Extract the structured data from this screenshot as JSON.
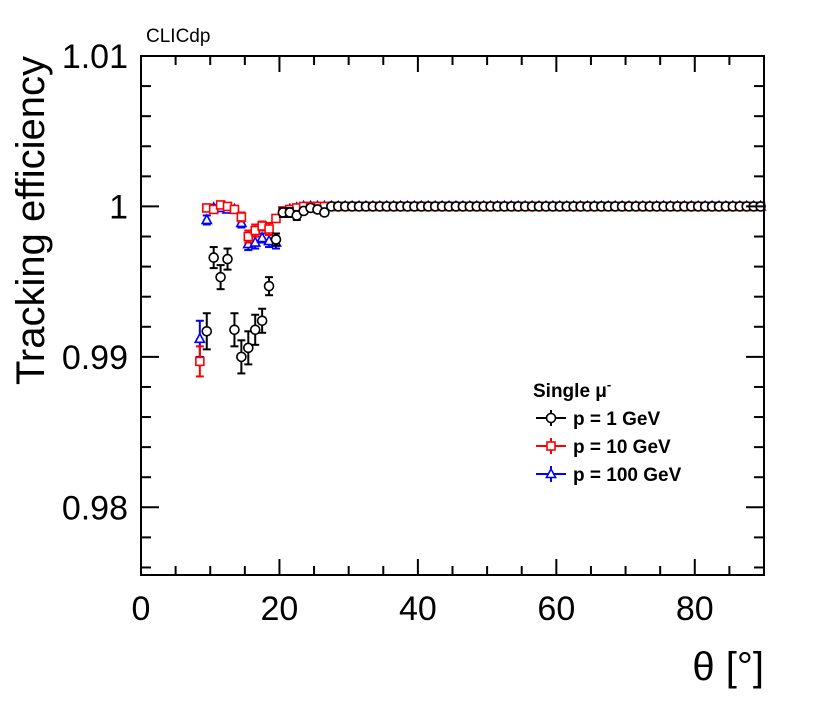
{
  "chart_data": {
    "type": "scatter",
    "label": "CLICdp",
    "xlabel": "θ [°]",
    "ylabel": "Tracking efficiency",
    "xlim": [
      0,
      90
    ],
    "ylim": [
      0.9755,
      1.01
    ],
    "x_ticks": [
      0,
      20,
      40,
      60,
      80
    ],
    "x_tick_labels": [
      "0",
      "20",
      "40",
      "60",
      "80"
    ],
    "y_ticks": [
      0.98,
      0.99,
      1.0,
      1.01
    ],
    "y_tick_labels": [
      "0.98",
      "0.99",
      "1",
      "1.01"
    ],
    "legend": {
      "title": "Single μ",
      "title_sup": "-",
      "position": "right"
    },
    "series": [
      {
        "name": "p = 1 GeV",
        "color": "#000000",
        "marker": "circle",
        "x": [
          9.5,
          10.5,
          11.5,
          12.5,
          13.5,
          14.5,
          15.5,
          16.5,
          17.5,
          18.5,
          19.5,
          20.5,
          21.5,
          22.5,
          23.5,
          24.5,
          25.5,
          26.5
        ],
        "y": [
          0.9917,
          0.9966,
          0.9953,
          0.9965,
          0.9918,
          0.99,
          0.9906,
          0.9918,
          0.9924,
          0.9947,
          0.9978,
          0.9996,
          0.9996,
          0.9994,
          0.9997,
          0.9999,
          0.9998,
          0.9996
        ],
        "err": [
          0.0012,
          0.0007,
          0.0008,
          0.0007,
          0.0011,
          0.0011,
          0.0011,
          0.001,
          0.0008,
          0.0006,
          0.0004,
          0.0003,
          0.0003,
          0.0003,
          0.0002,
          0.0002,
          0.0002,
          0.0002
        ],
        "plateau": {
          "from": 27.5,
          "to": 89.5,
          "step": 1,
          "y": 1.0
        }
      },
      {
        "name": "p = 10 GeV",
        "color": "#ff0000",
        "marker": "square",
        "x": [
          8.5,
          9.5,
          10.5,
          11.5,
          12.5,
          13.5,
          14.5,
          15.5,
          16.5,
          17.5,
          18.5,
          19.5,
          20.5,
          21.5,
          22.5,
          23.5,
          24.5
        ],
        "y": [
          0.9897,
          0.9999,
          0.9998,
          1.0001,
          1.0,
          0.9998,
          0.9993,
          0.998,
          0.9984,
          0.9987,
          0.9985,
          0.9992,
          0.9997,
          0.9998,
          0.9999,
          1.0,
          1.0
        ],
        "err": [
          0.001,
          0.0002,
          0.0002,
          0.0002,
          0.0002,
          0.0002,
          0.0003,
          0.0004,
          0.0004,
          0.0003,
          0.0004,
          0.0002,
          0.0002,
          0.0001,
          0.0001,
          0.0001,
          0.0001
        ],
        "plateau": {
          "from": 25.5,
          "to": 89.5,
          "step": 1,
          "y": 1.0
        }
      },
      {
        "name": "p = 100 GeV",
        "color": "#0000ff",
        "marker": "triangle",
        "x": [
          8.5,
          9.5,
          10.5,
          11.5,
          12.5,
          13.5,
          14.5,
          15.5,
          16.5,
          17.5,
          18.5,
          19.5,
          20.5,
          21.5,
          22.5,
          23.5,
          24.5
        ],
        "y": [
          0.9912,
          0.9991,
          0.9999,
          0.9999,
          0.9998,
          0.9998,
          0.9989,
          0.9975,
          0.9976,
          0.9979,
          0.9977,
          0.9976,
          0.9996,
          0.9998,
          0.9999,
          1.0,
          1.0
        ],
        "err": [
          0.0012,
          0.0003,
          0.0002,
          0.0002,
          0.0002,
          0.0002,
          0.0003,
          0.0004,
          0.0004,
          0.0003,
          0.0004,
          0.0004,
          0.0002,
          0.0001,
          0.0001,
          0.0001,
          0.0001
        ],
        "plateau": {
          "from": 25.5,
          "to": 89.5,
          "step": 1,
          "y": 1.0
        }
      }
    ]
  }
}
